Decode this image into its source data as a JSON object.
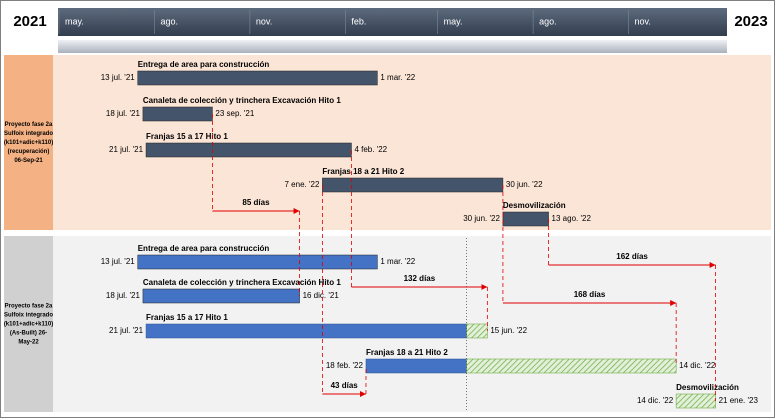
{
  "chart_data": {
    "type": "gantt",
    "left_year": "2021",
    "right_year": "2023",
    "xlim": [
      "2021-05-01",
      "2023-02-01"
    ],
    "xticks": [
      {
        "value": "2021-05-01",
        "label": "may."
      },
      {
        "value": "2021-08-01",
        "label": "ago."
      },
      {
        "value": "2021-11-01",
        "label": "nov."
      },
      {
        "value": "2022-02-01",
        "label": "feb."
      },
      {
        "value": "2022-05-01",
        "label": "may."
      },
      {
        "value": "2022-08-01",
        "label": "ago."
      },
      {
        "value": "2022-11-01",
        "label": "nov."
      }
    ],
    "status_line": "2022-05-26",
    "groups": [
      {
        "label_lines": [
          "Proyecto fase 2a",
          "Sulfoix integrado",
          "(k101+adic+k110)",
          "(recuperación)",
          "06-Sep-21"
        ],
        "color": "#44546a",
        "tasks": [
          {
            "name": "Entrega de area para construcción",
            "start": {
              "value": "2021-07-13",
              "label": "13 jul. '21"
            },
            "end": {
              "value": "2022-03-01",
              "label": "1 mar. '22"
            }
          },
          {
            "name": "Canaleta de colección y trinchera Excavación Hito 1",
            "start": {
              "value": "2021-07-18",
              "label": "18 jul. '21"
            },
            "end": {
              "value": "2021-09-23",
              "label": "23 sep. '21"
            }
          },
          {
            "name": "Franjas 15 a 17 Hito 1",
            "start": {
              "value": "2021-07-21",
              "label": "21 jul. '21"
            },
            "end": {
              "value": "2022-02-04",
              "label": "4 feb. '22"
            }
          },
          {
            "name": "Franjas 18 a 21 Hito 2",
            "start": {
              "value": "2022-01-07",
              "label": "7 ene. '22"
            },
            "end": {
              "value": "2022-06-30",
              "label": "30 jun. '22"
            }
          },
          {
            "name": "Desmovilización",
            "start": {
              "value": "2022-06-30",
              "label": "30 jun. '22"
            },
            "end": {
              "value": "2022-08-13",
              "label": "13 ago. '22"
            }
          }
        ]
      },
      {
        "label_lines": [
          "Proyecto fase 2a",
          "Sulfoix integrado",
          "(k101+adic+k110)",
          "(As-Built) 26-",
          "May-22"
        ],
        "color": "#4472c4",
        "remaining_color": "#70ad47",
        "tasks": [
          {
            "name": "Entrega de area para construcción",
            "start": {
              "value": "2021-07-13",
              "label": "13 jul. '21"
            },
            "end": {
              "value": "2022-03-01",
              "label": "1 mar. '22"
            }
          },
          {
            "name": "Canaleta de colección y trinchera Excavación Hito 1",
            "start": {
              "value": "2021-07-18",
              "label": "18 jul. '21"
            },
            "end": {
              "value": "2021-12-16",
              "label": "16 dic. '21"
            }
          },
          {
            "name": "Franjas 15 a 17 Hito 1",
            "start": {
              "value": "2021-07-21",
              "label": "21 jul. '21"
            },
            "end": {
              "value": "2022-06-15",
              "label": "15 jun. '22"
            }
          },
          {
            "name": "Franjas 18 a 21 Hito 2",
            "start": {
              "value": "2022-02-18",
              "label": "18 feb. '22"
            },
            "end": {
              "value": "2022-12-14",
              "label": "14 dic. '22"
            }
          },
          {
            "name": "Desmovilización",
            "start": {
              "value": "2022-12-14",
              "label": "14 dic. '22"
            },
            "end": {
              "value": "2023-01-21",
              "label": "21 ene. '23"
            }
          }
        ]
      }
    ],
    "variances": [
      {
        "value": 85,
        "label": "85 días",
        "from": "2021-09-23",
        "to": "2021-12-16"
      },
      {
        "value": 132,
        "label": "132 días",
        "from": "2022-02-04",
        "to": "2022-06-15"
      },
      {
        "value": 168,
        "label": "168 días",
        "from": "2022-06-30",
        "to": "2022-12-14"
      },
      {
        "value": 162,
        "label": "162 días",
        "from": "2022-08-13",
        "to": "2023-01-21"
      },
      {
        "value": 43,
        "label": "43 días",
        "from": "2022-01-07",
        "to": "2022-02-18"
      }
    ]
  }
}
